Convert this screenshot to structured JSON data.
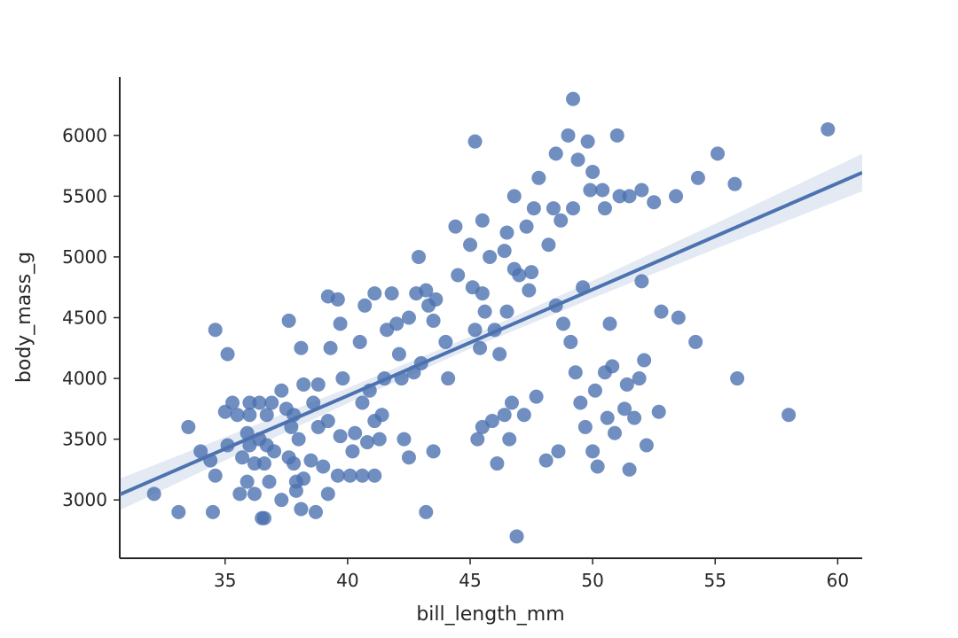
{
  "chart_data": {
    "type": "scatter",
    "xlabel": "bill_length_mm",
    "ylabel": "body_mass_g",
    "color": "#4c72b0",
    "xlim": [
      30.7,
      61.0
    ],
    "ylim": [
      2520,
      6480
    ],
    "xticks": [
      35,
      40,
      45,
      50,
      55,
      60
    ],
    "yticks": [
      3000,
      3500,
      4000,
      4500,
      5000,
      5500,
      6000
    ],
    "x": [
      32.1,
      33.1,
      33.5,
      34,
      34.4,
      34.5,
      34.6,
      34.6,
      35.1,
      35,
      35.1,
      35.3,
      35.5,
      35.6,
      35.7,
      35.9,
      35.9,
      36,
      36,
      36,
      36.2,
      36.2,
      36.4,
      36.4,
      36.5,
      36.6,
      36.6,
      36.7,
      36.7,
      36.8,
      36.9,
      37,
      37.3,
      37.3,
      37.5,
      37.6,
      37.6,
      37.7,
      37.8,
      37.8,
      37.9,
      37.9,
      38,
      38.1,
      38.1,
      38.2,
      38.2,
      38.5,
      38.6,
      38.7,
      38.8,
      38.8,
      39,
      39.2,
      39.2,
      39.2,
      39.3,
      39.6,
      39.6,
      39.7,
      39.7,
      39.8,
      40.1,
      40.2,
      40.3,
      40.5,
      40.6,
      40.6,
      40.7,
      40.8,
      40.9,
      41.1,
      41.1,
      41.1,
      41.3,
      41.4,
      41.5,
      41.6,
      41.8,
      42,
      42.1,
      42.2,
      42.3,
      42.5,
      42.5,
      42.7,
      42.8,
      42.9,
      43,
      43.2,
      43.2,
      43.3,
      43.5,
      43.5,
      43.6,
      44,
      44.1,
      44.4,
      44.5,
      45,
      45.1,
      45.2,
      45.2,
      45.3,
      45.4,
      45.5,
      45.5,
      45.5,
      45.6,
      45.8,
      45.9,
      46,
      46.1,
      46.2,
      46.4,
      46.4,
      46.5,
      46.5,
      46.6,
      46.7,
      46.8,
      46.8,
      46.9,
      47,
      47.2,
      47.3,
      47.4,
      47.5,
      47.6,
      47.7,
      47.8,
      48.1,
      48.2,
      48.4,
      48.5,
      48.5,
      48.6,
      48.7,
      48.8,
      49,
      49.1,
      49.2,
      49.2,
      49.3,
      49.4,
      49.5,
      49.6,
      49.7,
      49.8,
      49.9,
      50,
      50,
      50.1,
      50.2,
      50.4,
      50.5,
      50.5,
      50.6,
      50.7,
      50.8,
      50.9,
      51,
      51.1,
      51.3,
      51.4,
      51.5,
      51.5,
      51.7,
      51.9,
      52,
      52,
      52.1,
      52.2,
      52.5,
      52.7,
      52.8,
      53.4,
      53.5,
      54.2,
      54.3,
      55.1,
      55.8,
      55.9,
      58,
      59.6
    ],
    "values": [
      3050,
      2900,
      3600,
      3400,
      3325,
      2900,
      4400,
      3200,
      4200,
      3725,
      3450,
      3800,
      3700,
      3050,
      3350,
      3150,
      3550,
      3800,
      3700,
      3450,
      3300,
      3050,
      3800,
      3500,
      2850,
      2850,
      3300,
      3700,
      3450,
      3150,
      3800,
      3400,
      3900,
      3000,
      3750,
      3350,
      4475,
      3600,
      3700,
      3300,
      3150,
      3075,
      3500,
      2925,
      4250,
      3175,
      3950,
      3325,
      3800,
      2900,
      3600,
      3950,
      3275,
      3050,
      3650,
      4675,
      4250,
      3200,
      4650,
      4450,
      3525,
      4000,
      3200,
      3400,
      3550,
      4300,
      3800,
      3200,
      4600,
      3475,
      3900,
      4700,
      3200,
      3650,
      3500,
      3700,
      4000,
      4400,
      4700,
      4450,
      4200,
      4000,
      3500,
      4500,
      3350,
      4050,
      4700,
      5000,
      4125,
      4725,
      2900,
      4600,
      4475,
      3400,
      4650,
      4300,
      4000,
      5250,
      4850,
      5100,
      4750,
      5950,
      4400,
      3500,
      4250,
      5300,
      4700,
      3600,
      4550,
      5000,
      3650,
      4400,
      3300,
      4200,
      5050,
      3700,
      5200,
      4550,
      3500,
      3800,
      5500,
      4900,
      2700,
      4850,
      3700,
      5250,
      4725,
      4875,
      5400,
      3850,
      5650,
      3325,
      5100,
      5400,
      5850,
      4600,
      3400,
      5300,
      4450,
      6000,
      4300,
      5400,
      6300,
      4050,
      5800,
      3800,
      4750,
      3600,
      5950,
      5550,
      3400,
      5700,
      3900,
      3275,
      5550,
      5400,
      4050,
      3675,
      4450,
      4100,
      3550,
      6000,
      5500,
      3750,
      3950,
      5500,
      3250,
      3675,
      4000,
      5550,
      4800,
      4150,
      3450,
      5450,
      3725,
      4550,
      5500,
      4500,
      4300,
      5650,
      5850,
      5600,
      4000,
      3700,
      6050
    ],
    "regression": {
      "x": [
        30.7,
        35,
        40,
        45,
        50,
        55,
        61.0
      ],
      "y": [
        3045,
        3421,
        3858,
        4295,
        4732,
        5169,
        5694
      ],
      "ci_lower": [
        2915,
        3325,
        3795,
        4245,
        4660,
        5065,
        5540
      ],
      "ci_upper": [
        3175,
        3517,
        3921,
        4345,
        4804,
        5273,
        5848
      ]
    }
  }
}
